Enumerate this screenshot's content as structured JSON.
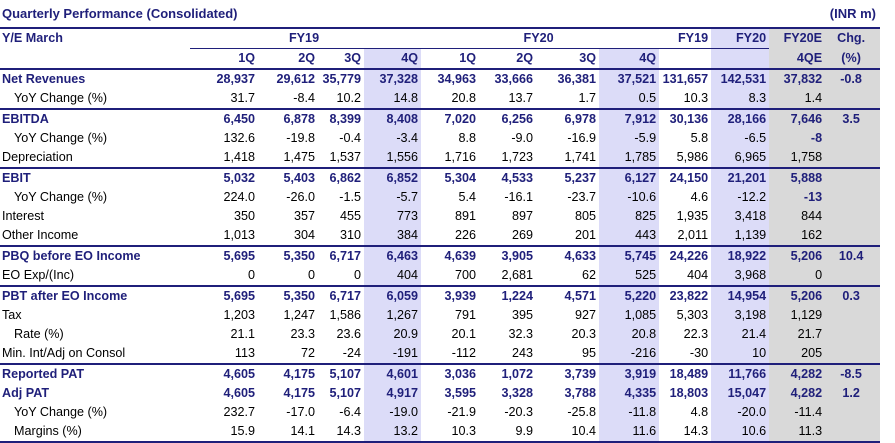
{
  "title": "Quarterly Performance (Consolidated)",
  "units": "(INR m)",
  "header": {
    "ye_label": "Y/E March",
    "fy19": "FY19",
    "fy20": "FY20",
    "annual_fy19": "FY19",
    "annual_fy20": "FY20",
    "estimate_top": "FY20E",
    "estimate_bottom": "4QE",
    "chg_top": "Chg.",
    "chg_bottom": "(%)",
    "quarters": [
      "1Q",
      "2Q",
      "3Q",
      "4Q",
      "1Q",
      "2Q",
      "3Q",
      "4Q"
    ]
  },
  "rows": [
    {
      "label": "Net Revenues",
      "bold": true,
      "values": [
        "28,937",
        "29,612",
        "35,779",
        "37,328",
        "34,963",
        "33,666",
        "36,381",
        "37,521",
        "131,657",
        "142,531",
        "37,832",
        "-0.8"
      ]
    },
    {
      "label": "YoY Change (%)",
      "indent": true,
      "values": [
        "31.7",
        "-8.4",
        "10.2",
        "14.8",
        "20.8",
        "13.7",
        "1.7",
        "0.5",
        "10.3",
        "8.3",
        "1.4",
        ""
      ]
    },
    {
      "label": "EBITDA",
      "bold": true,
      "values": [
        "6,450",
        "6,878",
        "8,399",
        "8,408",
        "7,020",
        "6,256",
        "6,978",
        "7,912",
        "30,136",
        "28,166",
        "7,646",
        "3.5"
      ]
    },
    {
      "label": "YoY Change (%)",
      "indent": true,
      "values": [
        "132.6",
        "-19.8",
        "-0.4",
        "-3.4",
        "8.8",
        "-9.0",
        "-16.9",
        "-5.9",
        "5.8",
        "-6.5",
        "-8",
        ""
      ],
      "est_bold": true
    },
    {
      "label": "Depreciation",
      "values": [
        "1,418",
        "1,475",
        "1,537",
        "1,556",
        "1,716",
        "1,723",
        "1,741",
        "1,785",
        "5,986",
        "6,965",
        "1,758",
        ""
      ]
    },
    {
      "label": "EBIT",
      "bold": true,
      "values": [
        "5,032",
        "5,403",
        "6,862",
        "6,852",
        "5,304",
        "4,533",
        "5,237",
        "6,127",
        "24,150",
        "21,201",
        "5,888",
        ""
      ]
    },
    {
      "label": "YoY Change (%)",
      "indent": true,
      "values": [
        "224.0",
        "-26.0",
        "-1.5",
        "-5.7",
        "5.4",
        "-16.1",
        "-23.7",
        "-10.6",
        "4.6",
        "-12.2",
        "-13",
        ""
      ],
      "est_bold": true
    },
    {
      "label": "Interest",
      "values": [
        "350",
        "357",
        "455",
        "773",
        "891",
        "897",
        "805",
        "825",
        "1,935",
        "3,418",
        "844",
        ""
      ]
    },
    {
      "label": "Other Income",
      "values": [
        "1,013",
        "304",
        "310",
        "384",
        "226",
        "269",
        "201",
        "443",
        "2,011",
        "1,139",
        "162",
        ""
      ]
    },
    {
      "label": "PBQ before EO Income",
      "bold": true,
      "values": [
        "5,695",
        "5,350",
        "6,717",
        "6,463",
        "4,639",
        "3,905",
        "4,633",
        "5,745",
        "24,226",
        "18,922",
        "5,206",
        "10.4"
      ]
    },
    {
      "label": "EO Exp/(Inc)",
      "values": [
        "0",
        "0",
        "0",
        "404",
        "700",
        "2,681",
        "62",
        "525",
        "404",
        "3,968",
        "0",
        ""
      ]
    },
    {
      "label": "PBT after EO Income",
      "bold": true,
      "values": [
        "5,695",
        "5,350",
        "6,717",
        "6,059",
        "3,939",
        "1,224",
        "4,571",
        "5,220",
        "23,822",
        "14,954",
        "5,206",
        "0.3"
      ]
    },
    {
      "label": "Tax",
      "values": [
        "1,203",
        "1,247",
        "1,586",
        "1,267",
        "791",
        "395",
        "927",
        "1,085",
        "5,303",
        "3,198",
        "1,129",
        ""
      ]
    },
    {
      "label": "Rate (%)",
      "indent": true,
      "values": [
        "21.1",
        "23.3",
        "23.6",
        "20.9",
        "20.1",
        "32.3",
        "20.3",
        "20.8",
        "22.3",
        "21.4",
        "21.7",
        ""
      ]
    },
    {
      "label": "Min. Int/Adj on Consol",
      "values": [
        "113",
        "72",
        "-24",
        "-191",
        "-112",
        "243",
        "95",
        "-216",
        "-30",
        "10",
        "205",
        ""
      ]
    },
    {
      "label": "Reported PAT",
      "bold": true,
      "values": [
        "4,605",
        "4,175",
        "5,107",
        "4,601",
        "3,036",
        "1,072",
        "3,739",
        "3,919",
        "18,489",
        "11,766",
        "4,282",
        "-8.5"
      ]
    },
    {
      "label": "Adj PAT",
      "bold": true,
      "values": [
        "4,605",
        "4,175",
        "5,107",
        "4,917",
        "3,595",
        "3,328",
        "3,788",
        "4,335",
        "18,803",
        "15,047",
        "4,282",
        "1.2"
      ]
    },
    {
      "label": "YoY Change (%)",
      "indent": true,
      "values": [
        "232.7",
        "-17.0",
        "-6.4",
        "-19.0",
        "-21.9",
        "-20.3",
        "-25.8",
        "-11.8",
        "4.8",
        "-20.0",
        "-11.4",
        ""
      ]
    },
    {
      "label": "Margins (%)",
      "indent": true,
      "values": [
        "15.9",
        "14.1",
        "14.3",
        "13.2",
        "10.3",
        "9.9",
        "10.4",
        "11.6",
        "14.3",
        "10.6",
        "11.3",
        ""
      ]
    }
  ],
  "colors": {
    "text_accent": "#1f1f7a",
    "shaded_col": "#dcdcf8",
    "estimate_col": "#d9d9d9"
  }
}
